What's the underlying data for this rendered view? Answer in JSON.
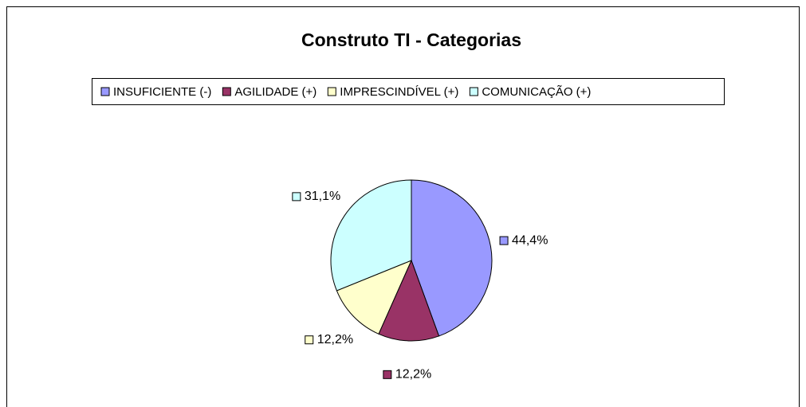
{
  "chart_data": {
    "type": "pie",
    "title": "Construto TI - Categorias",
    "categories": [
      "INSUFICIENTE (-)",
      "AGILIDADE (+)",
      "IMPRESCINDÍVEL (+)",
      "COMUNICAÇÃO (+)"
    ],
    "values": [
      44.4,
      12.2,
      12.2,
      31.1
    ],
    "value_labels": [
      "44,4%",
      "12,2%",
      "12,2%",
      "31,1%"
    ],
    "colors": [
      "#9999ff",
      "#993366",
      "#ffffcc",
      "#ccffff"
    ],
    "legend": "top"
  }
}
